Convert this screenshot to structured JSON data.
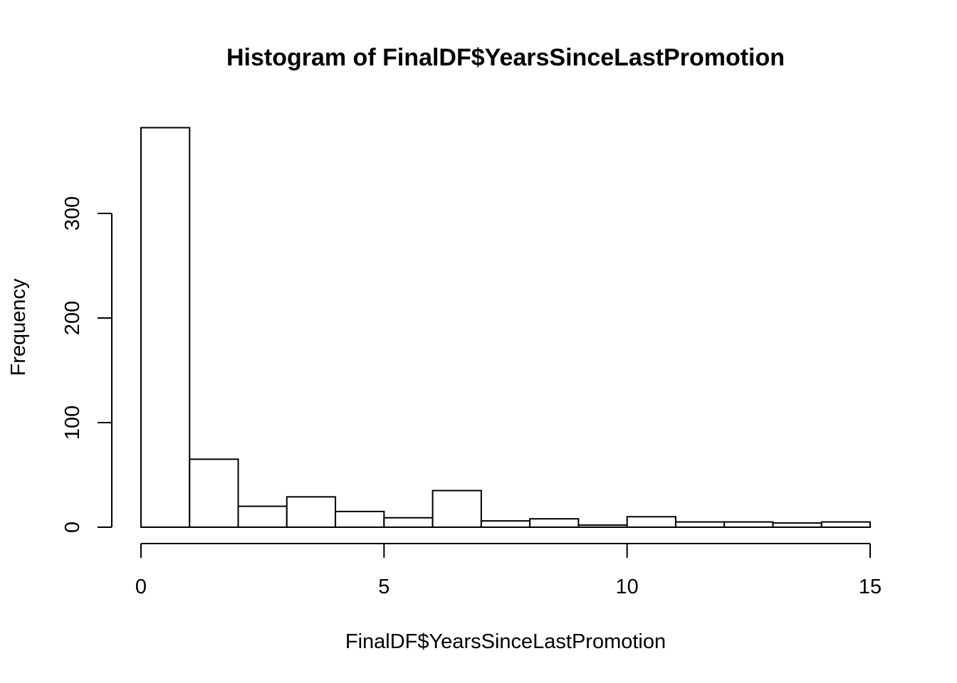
{
  "chart_data": {
    "type": "bar",
    "title": "Histogram of FinalDF$YearsSinceLastPromotion",
    "xlabel": "FinalDF$YearsSinceLastPromotion",
    "ylabel": "Frequency",
    "bins": [
      {
        "from": 0,
        "to": 1,
        "count": 382
      },
      {
        "from": 1,
        "to": 2,
        "count": 65
      },
      {
        "from": 2,
        "to": 3,
        "count": 20
      },
      {
        "from": 3,
        "to": 4,
        "count": 29
      },
      {
        "from": 4,
        "to": 5,
        "count": 15
      },
      {
        "from": 5,
        "to": 6,
        "count": 9
      },
      {
        "from": 6,
        "to": 7,
        "count": 35
      },
      {
        "from": 7,
        "to": 8,
        "count": 6
      },
      {
        "from": 8,
        "to": 9,
        "count": 8
      },
      {
        "from": 9,
        "to": 10,
        "count": 2
      },
      {
        "from": 10,
        "to": 11,
        "count": 10
      },
      {
        "from": 11,
        "to": 12,
        "count": 5
      },
      {
        "from": 12,
        "to": 13,
        "count": 5
      },
      {
        "from": 13,
        "to": 14,
        "count": 4
      },
      {
        "from": 14,
        "to": 15,
        "count": 5
      }
    ],
    "xlim": [
      0,
      15
    ],
    "ylim": [
      0,
      382
    ],
    "x_ticks": [
      0,
      5,
      10,
      15
    ],
    "y_ticks": [
      0,
      100,
      200,
      300
    ],
    "grid": false,
    "legend": "none",
    "bar_fill": "#ffffff",
    "bar_stroke": "#000000"
  }
}
